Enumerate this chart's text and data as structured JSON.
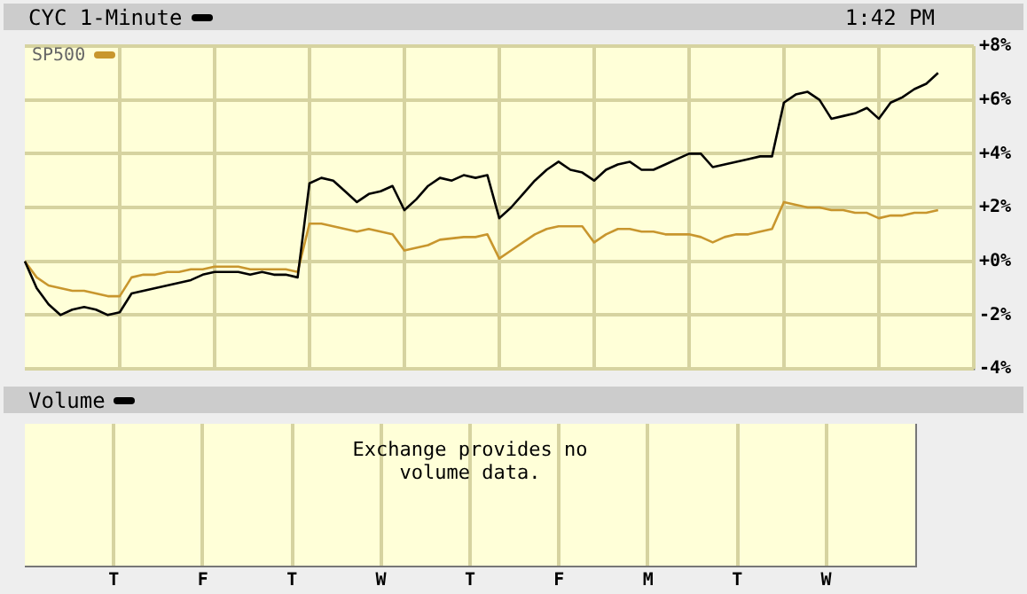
{
  "chart_data": [
    {
      "type": "line",
      "subtitle": "1:42 PM",
      "legend": "top left",
      "grid": true,
      "tick_labels": "y",
      "categories": [
        null,
        null,
        null,
        null,
        null,
        null,
        null,
        null,
        null,
        null,
        null,
        null,
        null,
        null,
        null,
        null,
        null,
        null,
        null,
        null,
        null,
        null,
        null,
        null,
        null,
        null,
        null,
        null,
        null,
        null,
        null,
        null,
        null,
        null,
        null,
        null,
        null,
        null,
        null,
        null,
        null,
        null,
        null,
        null,
        null,
        null,
        null,
        null,
        null,
        null,
        null,
        null,
        null,
        null,
        null,
        null,
        null,
        null,
        null,
        null,
        null,
        null,
        null,
        null,
        null,
        null,
        null,
        null,
        null,
        null,
        null,
        null,
        null,
        null,
        null,
        null,
        null,
        null,
        null,
        null,
        null
      ],
      "series": [
        {
          "name": "CYC 1-Minute",
          "color": "#000000",
          "values": [
            0,
            -1.0,
            -1.6,
            -2.0,
            -1.8,
            -1.7,
            -1.8,
            -2.0,
            -1.9,
            -1.2,
            -1.1,
            -1.0,
            -0.9,
            -0.8,
            -0.7,
            -0.5,
            -0.4,
            -0.4,
            -0.4,
            -0.5,
            -0.4,
            -0.5,
            -0.5,
            -0.6,
            2.9,
            3.1,
            3.0,
            2.6,
            2.2,
            2.5,
            2.6,
            2.8,
            1.9,
            2.3,
            2.8,
            3.1,
            3.0,
            3.2,
            3.1,
            3.2,
            1.6,
            2.0,
            2.5,
            3.0,
            3.4,
            3.7,
            3.4,
            3.3,
            3.0,
            3.4,
            3.6,
            3.7,
            3.4,
            3.4,
            3.6,
            3.8,
            4.0,
            4.0,
            3.5,
            3.6,
            3.7,
            3.8,
            3.9,
            3.9,
            5.9,
            6.2,
            6.3,
            6.0,
            5.3,
            5.4,
            5.5,
            5.7,
            5.3,
            5.9,
            6.1,
            6.4,
            6.6,
            7.0,
            null,
            null,
            null
          ]
        },
        {
          "name": "SP500",
          "color": "#c8962e",
          "values": [
            0,
            -0.6,
            -0.9,
            -1.0,
            -1.1,
            -1.1,
            -1.2,
            -1.3,
            -1.3,
            -0.6,
            -0.5,
            -0.5,
            -0.4,
            -0.4,
            -0.3,
            -0.3,
            -0.2,
            -0.2,
            -0.2,
            -0.3,
            -0.3,
            -0.3,
            -0.3,
            -0.4,
            1.4,
            1.4,
            1.3,
            1.2,
            1.1,
            1.2,
            1.1,
            1.0,
            0.4,
            0.5,
            0.6,
            0.8,
            0.85,
            0.9,
            0.9,
            1.0,
            0.1,
            0.4,
            0.7,
            1.0,
            1.2,
            1.3,
            1.3,
            1.3,
            0.7,
            1.0,
            1.2,
            1.2,
            1.1,
            1.1,
            1.0,
            1.0,
            1.0,
            0.9,
            0.7,
            0.9,
            1.0,
            1.0,
            1.1,
            1.2,
            2.2,
            2.1,
            2.0,
            2.0,
            1.9,
            1.9,
            1.8,
            1.8,
            1.6,
            1.7,
            1.7,
            1.8,
            1.8,
            1.9,
            null,
            null,
            null
          ]
        }
      ],
      "ylim": [
        -4,
        8
      ],
      "yticks": [
        {
          "value": -4,
          "label": "-4%"
        },
        {
          "value": -2,
          "label": "-2%"
        },
        {
          "value": 0,
          "label": "+0%"
        },
        {
          "value": 2,
          "label": "+2%"
        },
        {
          "value": 4,
          "label": "+4%"
        },
        {
          "value": 6,
          "label": "+6%"
        },
        {
          "value": 8,
          "label": "+8%"
        }
      ]
    },
    {
      "type": "other",
      "title": "Volume",
      "annotations": [
        "Exchange provides no volume data."
      ],
      "categories": [
        "T",
        "F",
        "T",
        "W",
        "T",
        "F",
        "M",
        "T",
        "W"
      ]
    }
  ]
}
